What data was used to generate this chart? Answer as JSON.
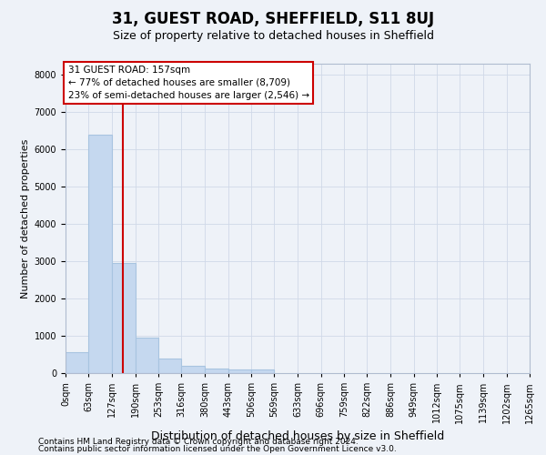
{
  "title1": "31, GUEST ROAD, SHEFFIELD, S11 8UJ",
  "title2": "Size of property relative to detached houses in Sheffield",
  "xlabel": "Distribution of detached houses by size in Sheffield",
  "ylabel": "Number of detached properties",
  "bin_labels": [
    "0sqm",
    "63sqm",
    "127sqm",
    "190sqm",
    "253sqm",
    "316sqm",
    "380sqm",
    "443sqm",
    "506sqm",
    "569sqm",
    "633sqm",
    "696sqm",
    "759sqm",
    "822sqm",
    "886sqm",
    "949sqm",
    "1012sqm",
    "1075sqm",
    "1139sqm",
    "1202sqm",
    "1265sqm"
  ],
  "bin_edges": [
    0,
    63,
    127,
    190,
    253,
    316,
    380,
    443,
    506,
    569,
    633,
    696,
    759,
    822,
    886,
    949,
    1012,
    1075,
    1139,
    1202,
    1265
  ],
  "bar_heights": [
    550,
    6400,
    2950,
    950,
    400,
    200,
    130,
    90,
    90,
    0,
    0,
    0,
    0,
    0,
    0,
    0,
    0,
    0,
    0,
    0
  ],
  "bar_color": "#c5d8ef",
  "bar_edge_color": "#a8c4e0",
  "grid_color": "#d0d8e8",
  "vline_x": 157,
  "vline_color": "#cc0000",
  "annotation_text": "31 GUEST ROAD: 157sqm\n← 77% of detached houses are smaller (8,709)\n23% of semi-detached houses are larger (2,546) →",
  "annotation_box_facecolor": "#ffffff",
  "annotation_box_edgecolor": "#cc0000",
  "ylim": [
    0,
    8300
  ],
  "yticks": [
    0,
    1000,
    2000,
    3000,
    4000,
    5000,
    6000,
    7000,
    8000
  ],
  "footer1": "Contains HM Land Registry data © Crown copyright and database right 2024.",
  "footer2": "Contains public sector information licensed under the Open Government Licence v3.0.",
  "bg_color": "#eef2f8",
  "title1_fontsize": 12,
  "title2_fontsize": 9,
  "xlabel_fontsize": 9,
  "ylabel_fontsize": 8,
  "tick_fontsize": 7,
  "annot_fontsize": 7.5
}
